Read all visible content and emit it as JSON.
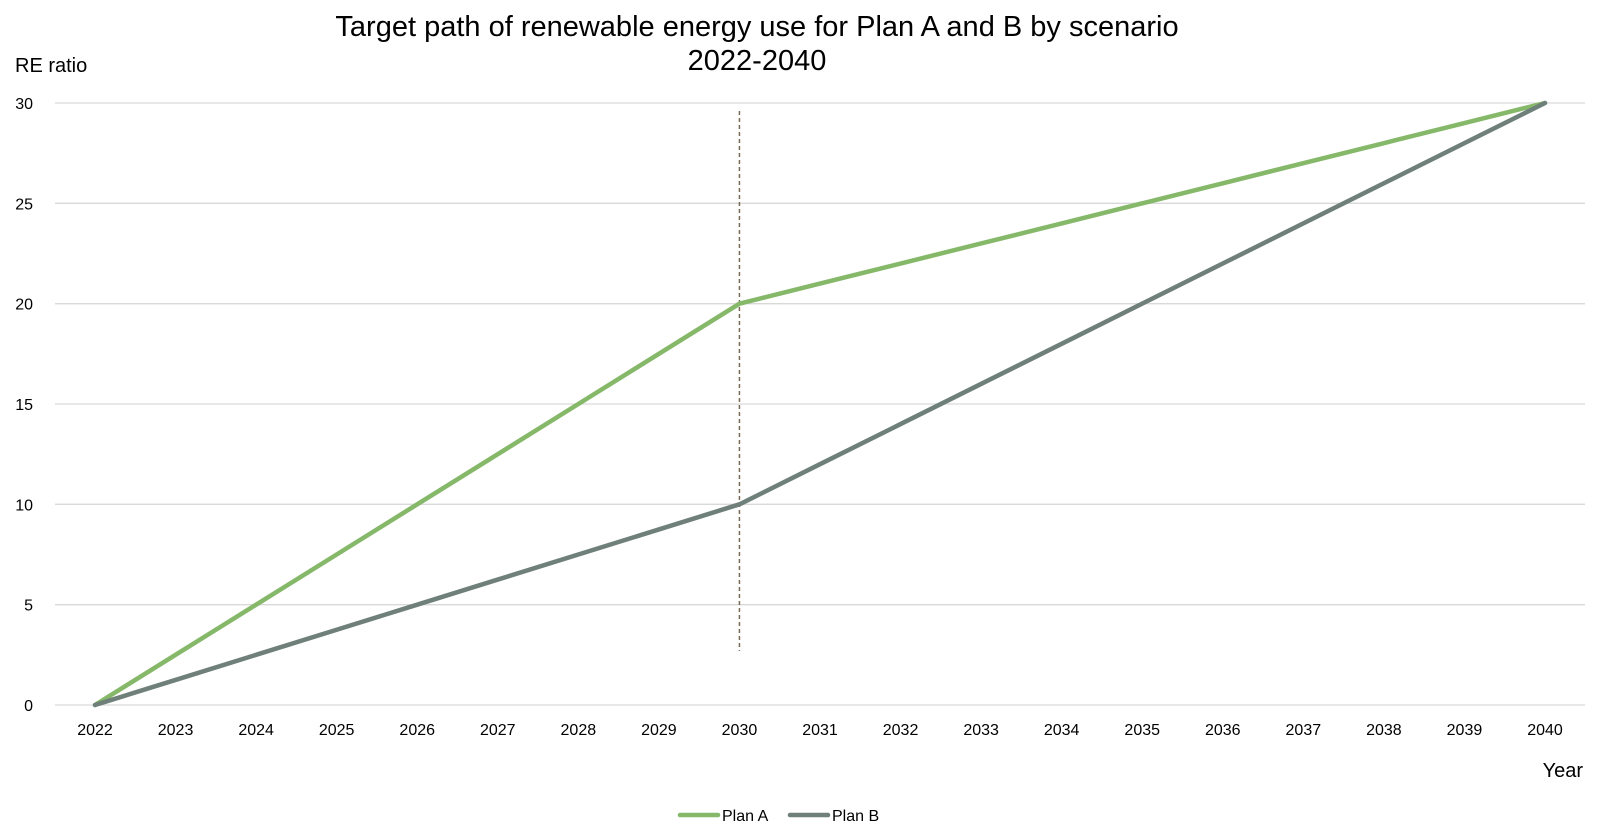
{
  "chart_data": {
    "type": "line",
    "title": "Target path of renewable energy use for Plan A and B by scenario",
    "subtitle": "2022-2040",
    "xlabel": "Year",
    "ylabel": "RE ratio",
    "x": [
      "2022",
      "2023",
      "2024",
      "2025",
      "2026",
      "2027",
      "2028",
      "2029",
      "2030",
      "2031",
      "2032",
      "2033",
      "2034",
      "2035",
      "2036",
      "2037",
      "2038",
      "2039",
      "2040"
    ],
    "ylim": [
      0,
      30
    ],
    "yticks": [
      "0",
      "5",
      "10",
      "15",
      "20",
      "25",
      "30"
    ],
    "grid": true,
    "legend": "bottom-center",
    "series": [
      {
        "name": "Plan A",
        "color": "#86b86a",
        "values": [
          0,
          2.5,
          5,
          7.5,
          10,
          12.5,
          15,
          17.5,
          20,
          21,
          22,
          23,
          24,
          25,
          26,
          27,
          28,
          29,
          30
        ]
      },
      {
        "name": "Plan B",
        "color": "#6f7f79",
        "values": [
          0,
          1.25,
          2.5,
          3.75,
          5,
          6.25,
          7.5,
          8.75,
          10,
          12,
          14,
          16,
          18,
          20,
          22,
          24,
          26,
          28,
          30
        ]
      }
    ],
    "marker_line": {
      "x": "2030",
      "y_from": 2.7,
      "y_to": 29.6,
      "color": "#7a6a55",
      "style": "dashed"
    }
  }
}
